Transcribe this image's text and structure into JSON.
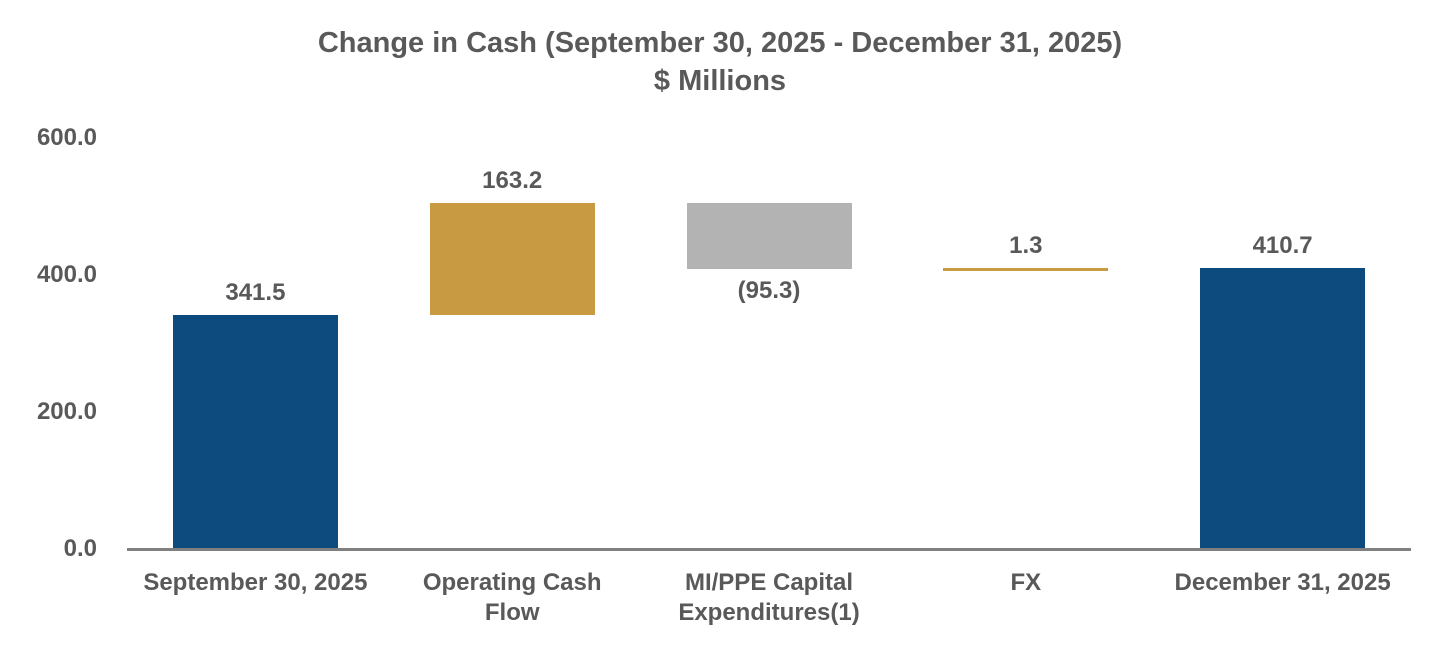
{
  "title": {
    "line1": "Change in Cash (September 30, 2025 - December 31, 2025)",
    "line2": "$ Millions"
  },
  "colors": {
    "anchor_blue": "#0d4a7d",
    "increase_gold": "#c89b42",
    "decrease_gray": "#b3b3b3",
    "text_gray": "#595959",
    "axis_gray": "#808080"
  },
  "chart_data": {
    "type": "bar",
    "subtype": "waterfall",
    "title": "Change in Cash (September 30, 2025 - December 31, 2025)",
    "subtitle": "$ Millions",
    "xlabel": "",
    "ylabel": "",
    "ylim": [
      0,
      600
    ],
    "grid": false,
    "legend": false,
    "y_ticks": [
      {
        "value": 600,
        "label": "600.0"
      },
      {
        "value": 400,
        "label": "400.0"
      },
      {
        "value": 200,
        "label": "200.0"
      },
      {
        "value": 0,
        "label": "0.0"
      }
    ],
    "categories": [
      "September 30, 2025",
      "Operating Cash Flow",
      "MI/PPE Capital Expenditures(1)",
      "FX",
      "December 31, 2025"
    ],
    "bars": [
      {
        "category": "September 30, 2025",
        "value": 341.5,
        "display_value": "341.5",
        "start": 0,
        "end": 341.5,
        "color_key": "anchor_blue",
        "value_label_position": "above"
      },
      {
        "category": "Operating Cash Flow",
        "value": 163.2,
        "display_value": "163.2",
        "start": 341.5,
        "end": 504.7,
        "color_key": "increase_gold",
        "value_label_position": "above"
      },
      {
        "category": "MI/PPE Capital Expenditures(1)",
        "value": -95.3,
        "display_value": "(95.3)",
        "start": 504.7,
        "end": 409.4,
        "color_key": "decrease_gray",
        "value_label_position": "below"
      },
      {
        "category": "FX",
        "value": 1.3,
        "display_value": "1.3",
        "start": 409.4,
        "end": 410.7,
        "color_key": "increase_gold",
        "value_label_position": "above"
      },
      {
        "category": "December 31, 2025",
        "value": 410.7,
        "display_value": "410.7",
        "start": 0,
        "end": 410.7,
        "color_key": "anchor_blue",
        "value_label_position": "above"
      }
    ]
  }
}
